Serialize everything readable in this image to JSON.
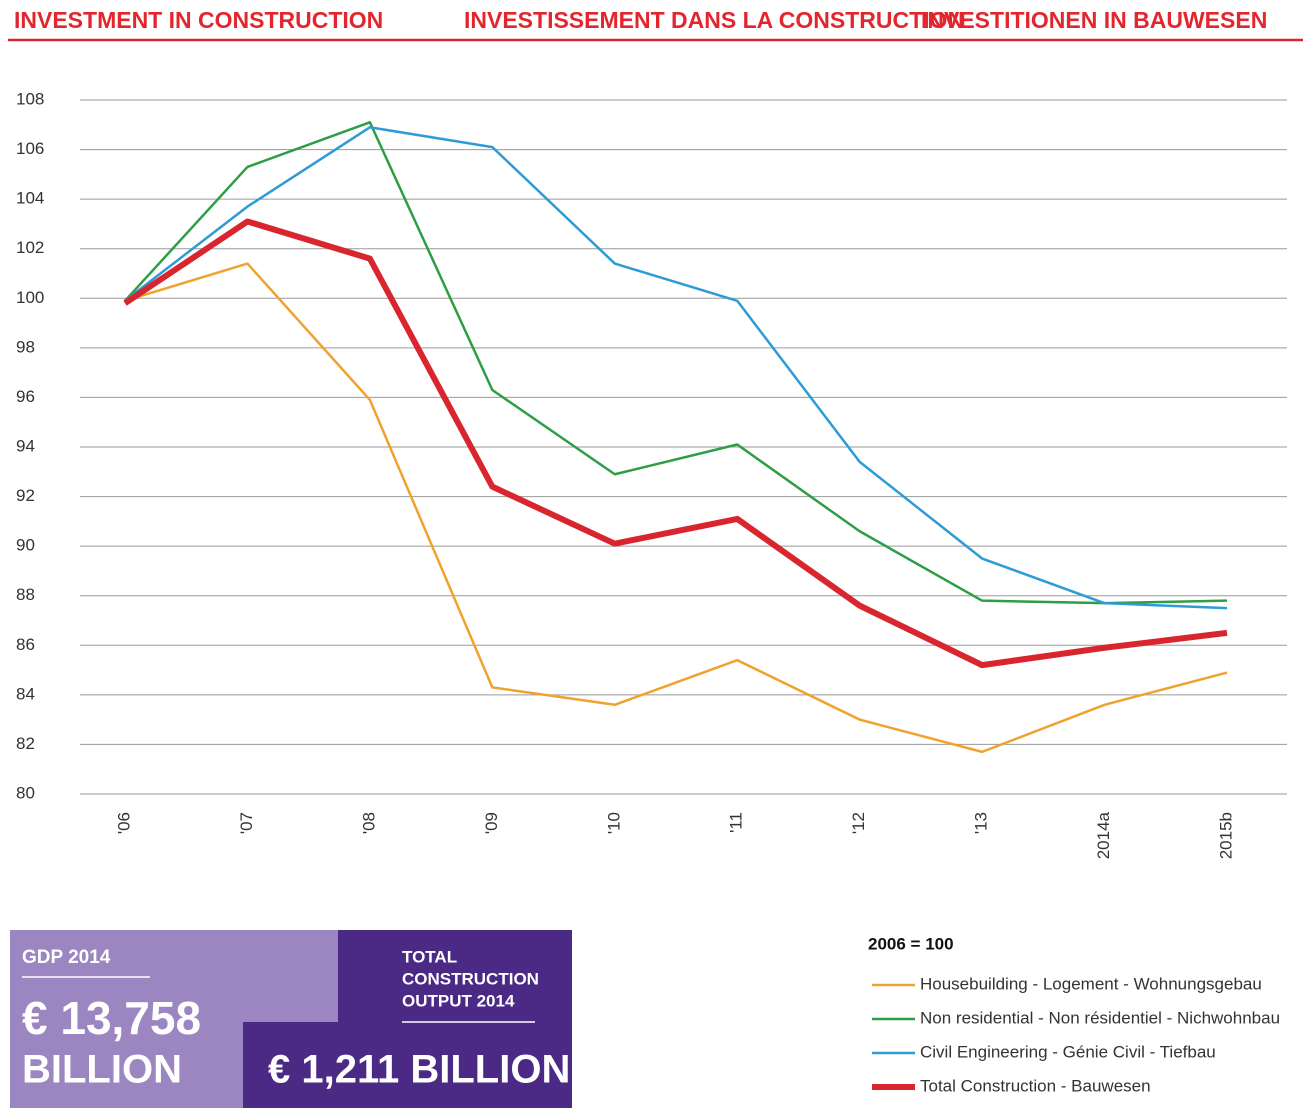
{
  "chart_data": {
    "type": "line",
    "titles": [
      "INVESTMENT IN CONSTRUCTION",
      "INVESTISSEMENT DANS LA CONSTRUCTION",
      "INVESTITIONEN IN BAUWESEN"
    ],
    "note": "2006 = 100",
    "categories": [
      "'06",
      "'07",
      "'08",
      "'09",
      "'10",
      "'11",
      "'12",
      "'13",
      "2014a",
      "2015b"
    ],
    "series": [
      {
        "name": "Housebuilding - Logement - Wohnungsgebau",
        "color": "#f0a22e",
        "linewidth": 2.5,
        "values": [
          99.9,
          101.4,
          95.9,
          84.3,
          83.6,
          85.4,
          83.0,
          81.7,
          83.6,
          84.9
        ]
      },
      {
        "name": "Non residential - Non résidentiel - Nichwohnbau",
        "color": "#2e9e45",
        "linewidth": 2.5,
        "values": [
          99.9,
          105.3,
          107.1,
          96.3,
          92.9,
          94.1,
          90.6,
          87.8,
          87.7,
          87.8
        ]
      },
      {
        "name": "Civil Engineering - Génie Civil - Tiefbau",
        "color": "#2e9bd6",
        "linewidth": 2.5,
        "values": [
          99.9,
          103.7,
          106.9,
          106.1,
          101.4,
          99.9,
          93.4,
          89.5,
          87.7,
          87.5
        ]
      },
      {
        "name": "Total Construction - Bauwesen",
        "color": "#d9262e",
        "linewidth": 6,
        "values": [
          99.8,
          103.1,
          101.6,
          92.4,
          90.1,
          91.1,
          87.6,
          85.2,
          85.9,
          86.5
        ]
      }
    ],
    "ylim": [
      80,
      108
    ],
    "yticks": [
      80,
      82,
      84,
      86,
      88,
      90,
      92,
      94,
      96,
      98,
      100,
      102,
      104,
      106,
      108
    ],
    "grid": true
  },
  "info_boxes": [
    {
      "label": [
        "GDP 2014"
      ],
      "value": "€ 13,758",
      "unit": "BILLION"
    },
    {
      "label": [
        "TOTAL",
        "CONSTRUCTION",
        "OUTPUT 2014"
      ],
      "value": "€ 1,211 BILLION"
    }
  ]
}
